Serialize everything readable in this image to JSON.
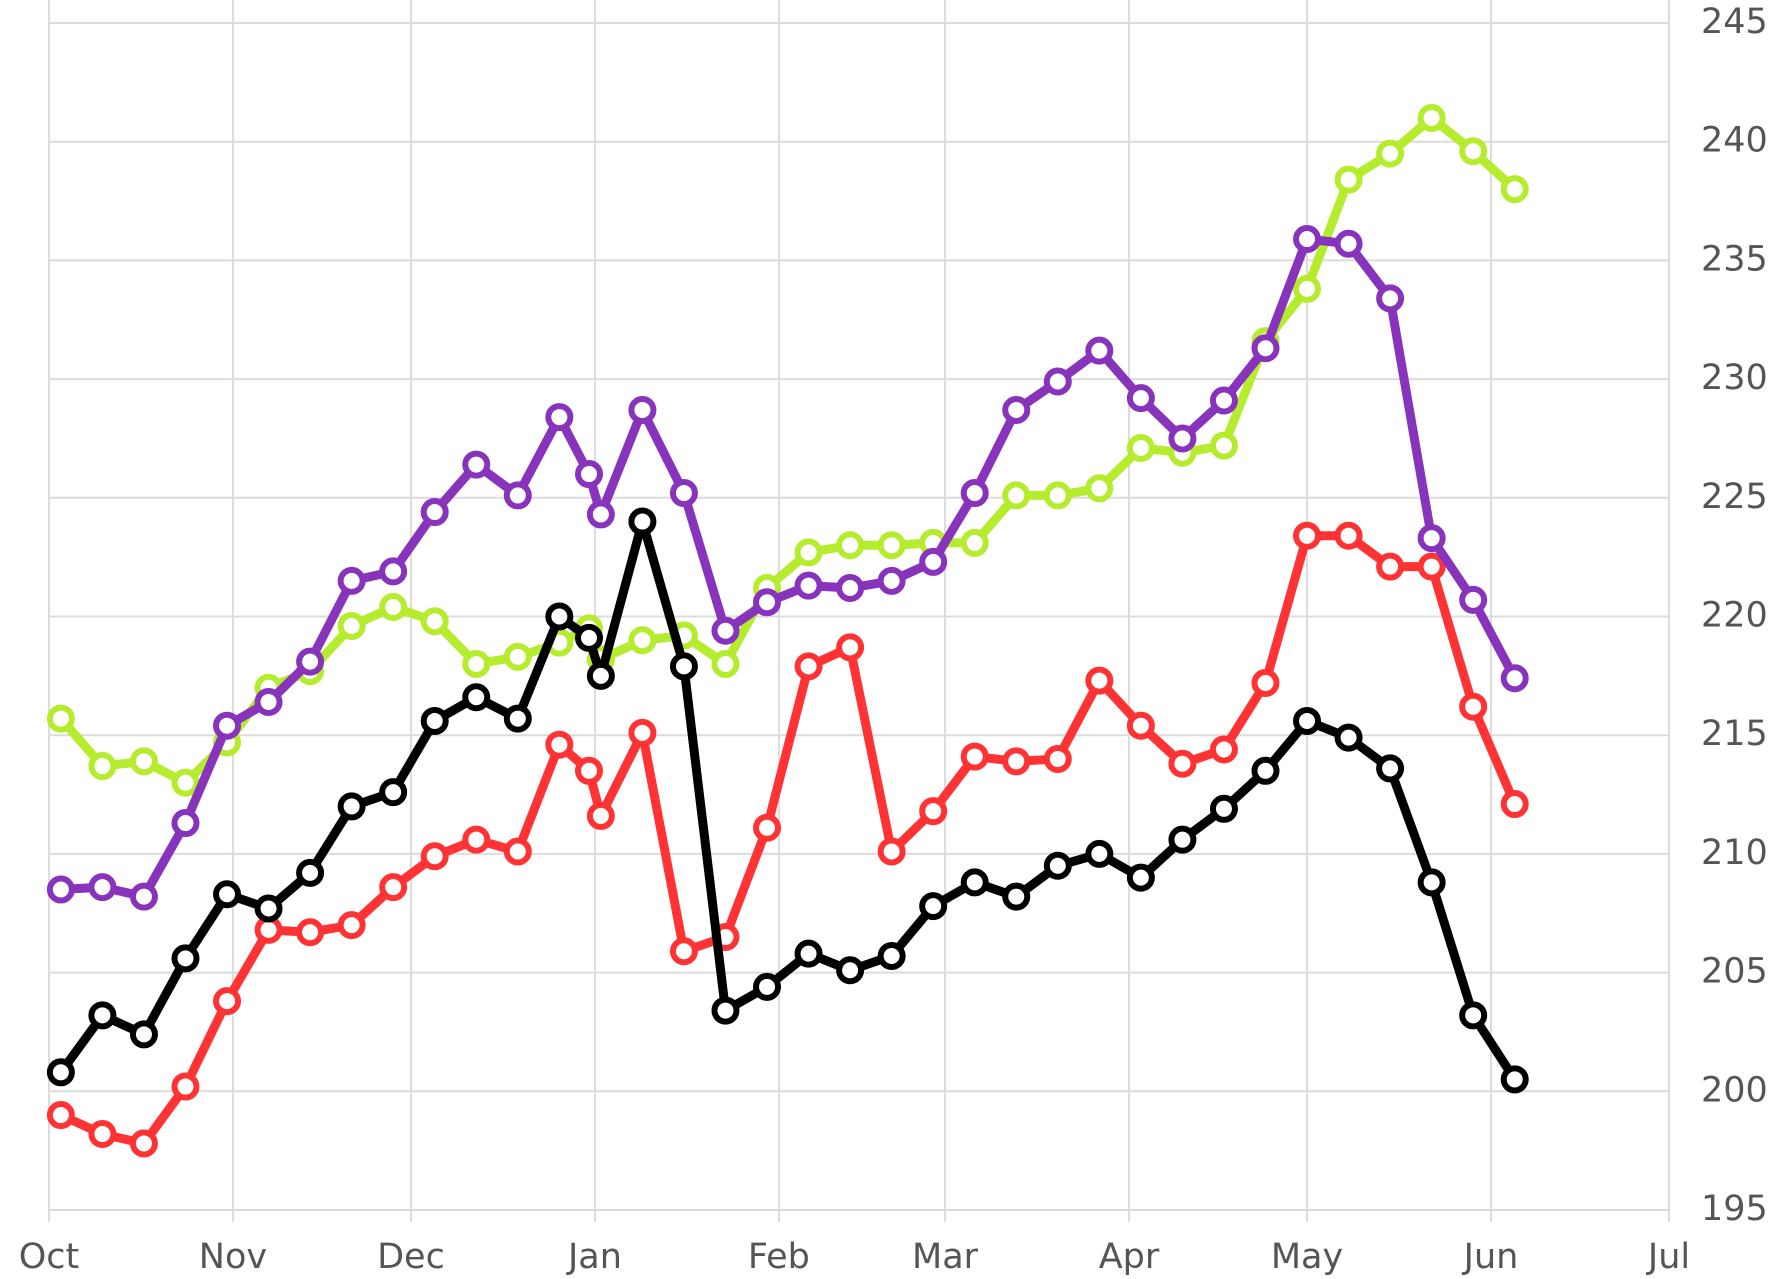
{
  "chart_data": {
    "type": "line",
    "x": [
      2,
      9,
      16,
      23,
      30,
      37,
      44,
      51,
      58,
      65,
      72,
      79,
      86,
      91,
      93,
      100,
      107,
      114,
      121,
      128,
      135,
      142,
      149,
      156,
      163,
      170,
      177,
      184,
      191,
      198,
      205,
      212,
      219,
      226,
      233,
      240,
      247
    ],
    "series": [
      {
        "color": "#b5ec2e",
        "values": [
          215.7,
          213.7,
          213.9,
          213.0,
          214.7,
          217.0,
          217.7,
          219.6,
          220.4,
          219.8,
          218.0,
          218.3,
          218.9,
          219.5,
          218.2,
          219.0,
          219.2,
          218.0,
          221.2,
          222.7,
          223.0,
          223.0,
          223.1,
          223.1,
          225.1,
          225.1,
          225.4,
          227.1,
          226.9,
          227.2,
          231.6,
          233.8,
          238.4,
          239.5,
          241.0,
          239.6,
          238.0
        ]
      },
      {
        "color": "#ff3333",
        "values": [
          199.0,
          198.2,
          197.8,
          200.2,
          203.8,
          206.8,
          206.7,
          207.0,
          208.6,
          209.9,
          210.6,
          210.1,
          214.6,
          213.5,
          211.6,
          215.1,
          205.9,
          206.5,
          211.1,
          217.9,
          218.7,
          210.1,
          211.8,
          214.1,
          213.9,
          214.0,
          217.3,
          215.4,
          213.8,
          214.4,
          217.2,
          223.4,
          223.4,
          222.1,
          222.1,
          216.2,
          212.1
        ]
      },
      {
        "color": "#8833bb",
        "values": [
          208.5,
          208.6,
          208.2,
          211.3,
          215.4,
          216.4,
          218.1,
          221.5,
          221.9,
          224.4,
          226.4,
          225.1,
          228.4,
          226.0,
          224.3,
          228.7,
          225.2,
          219.4,
          220.6,
          221.3,
          221.2,
          221.5,
          222.3,
          225.2,
          228.7,
          229.9,
          231.2,
          229.2,
          227.5,
          229.1,
          231.3,
          235.9,
          235.7,
          233.4,
          223.3,
          220.7,
          217.4
        ]
      },
      {
        "color": "#000000",
        "values": [
          200.8,
          203.2,
          202.4,
          205.6,
          208.3,
          207.7,
          209.2,
          212.0,
          212.6,
          215.6,
          216.6,
          215.7,
          220.0,
          219.1,
          217.5,
          224.0,
          217.9,
          203.4,
          204.4,
          205.8,
          205.1,
          205.7,
          207.8,
          208.8,
          208.2,
          209.5,
          210.0,
          209.0,
          210.6,
          211.9,
          213.5,
          215.6,
          214.9,
          213.6,
          208.8,
          203.2,
          200.5
        ]
      }
    ],
    "xlim": [
      0,
      273
    ],
    "xticks": [
      {
        "value": 0,
        "label": "Oct"
      },
      {
        "value": 31,
        "label": "Nov"
      },
      {
        "value": 61,
        "label": "Dec"
      },
      {
        "value": 92,
        "label": "Jan"
      },
      {
        "value": 123,
        "label": "Feb"
      },
      {
        "value": 151,
        "label": "Mar"
      },
      {
        "value": 182,
        "label": "Apr"
      },
      {
        "value": 212,
        "label": "May"
      },
      {
        "value": 243,
        "label": "Jun"
      },
      {
        "value": 273,
        "label": "Jul"
      }
    ],
    "ylim": [
      195,
      245
    ],
    "yticks": [
      195,
      200,
      205,
      210,
      215,
      220,
      225,
      230,
      235,
      240,
      245
    ],
    "grid": true
  }
}
